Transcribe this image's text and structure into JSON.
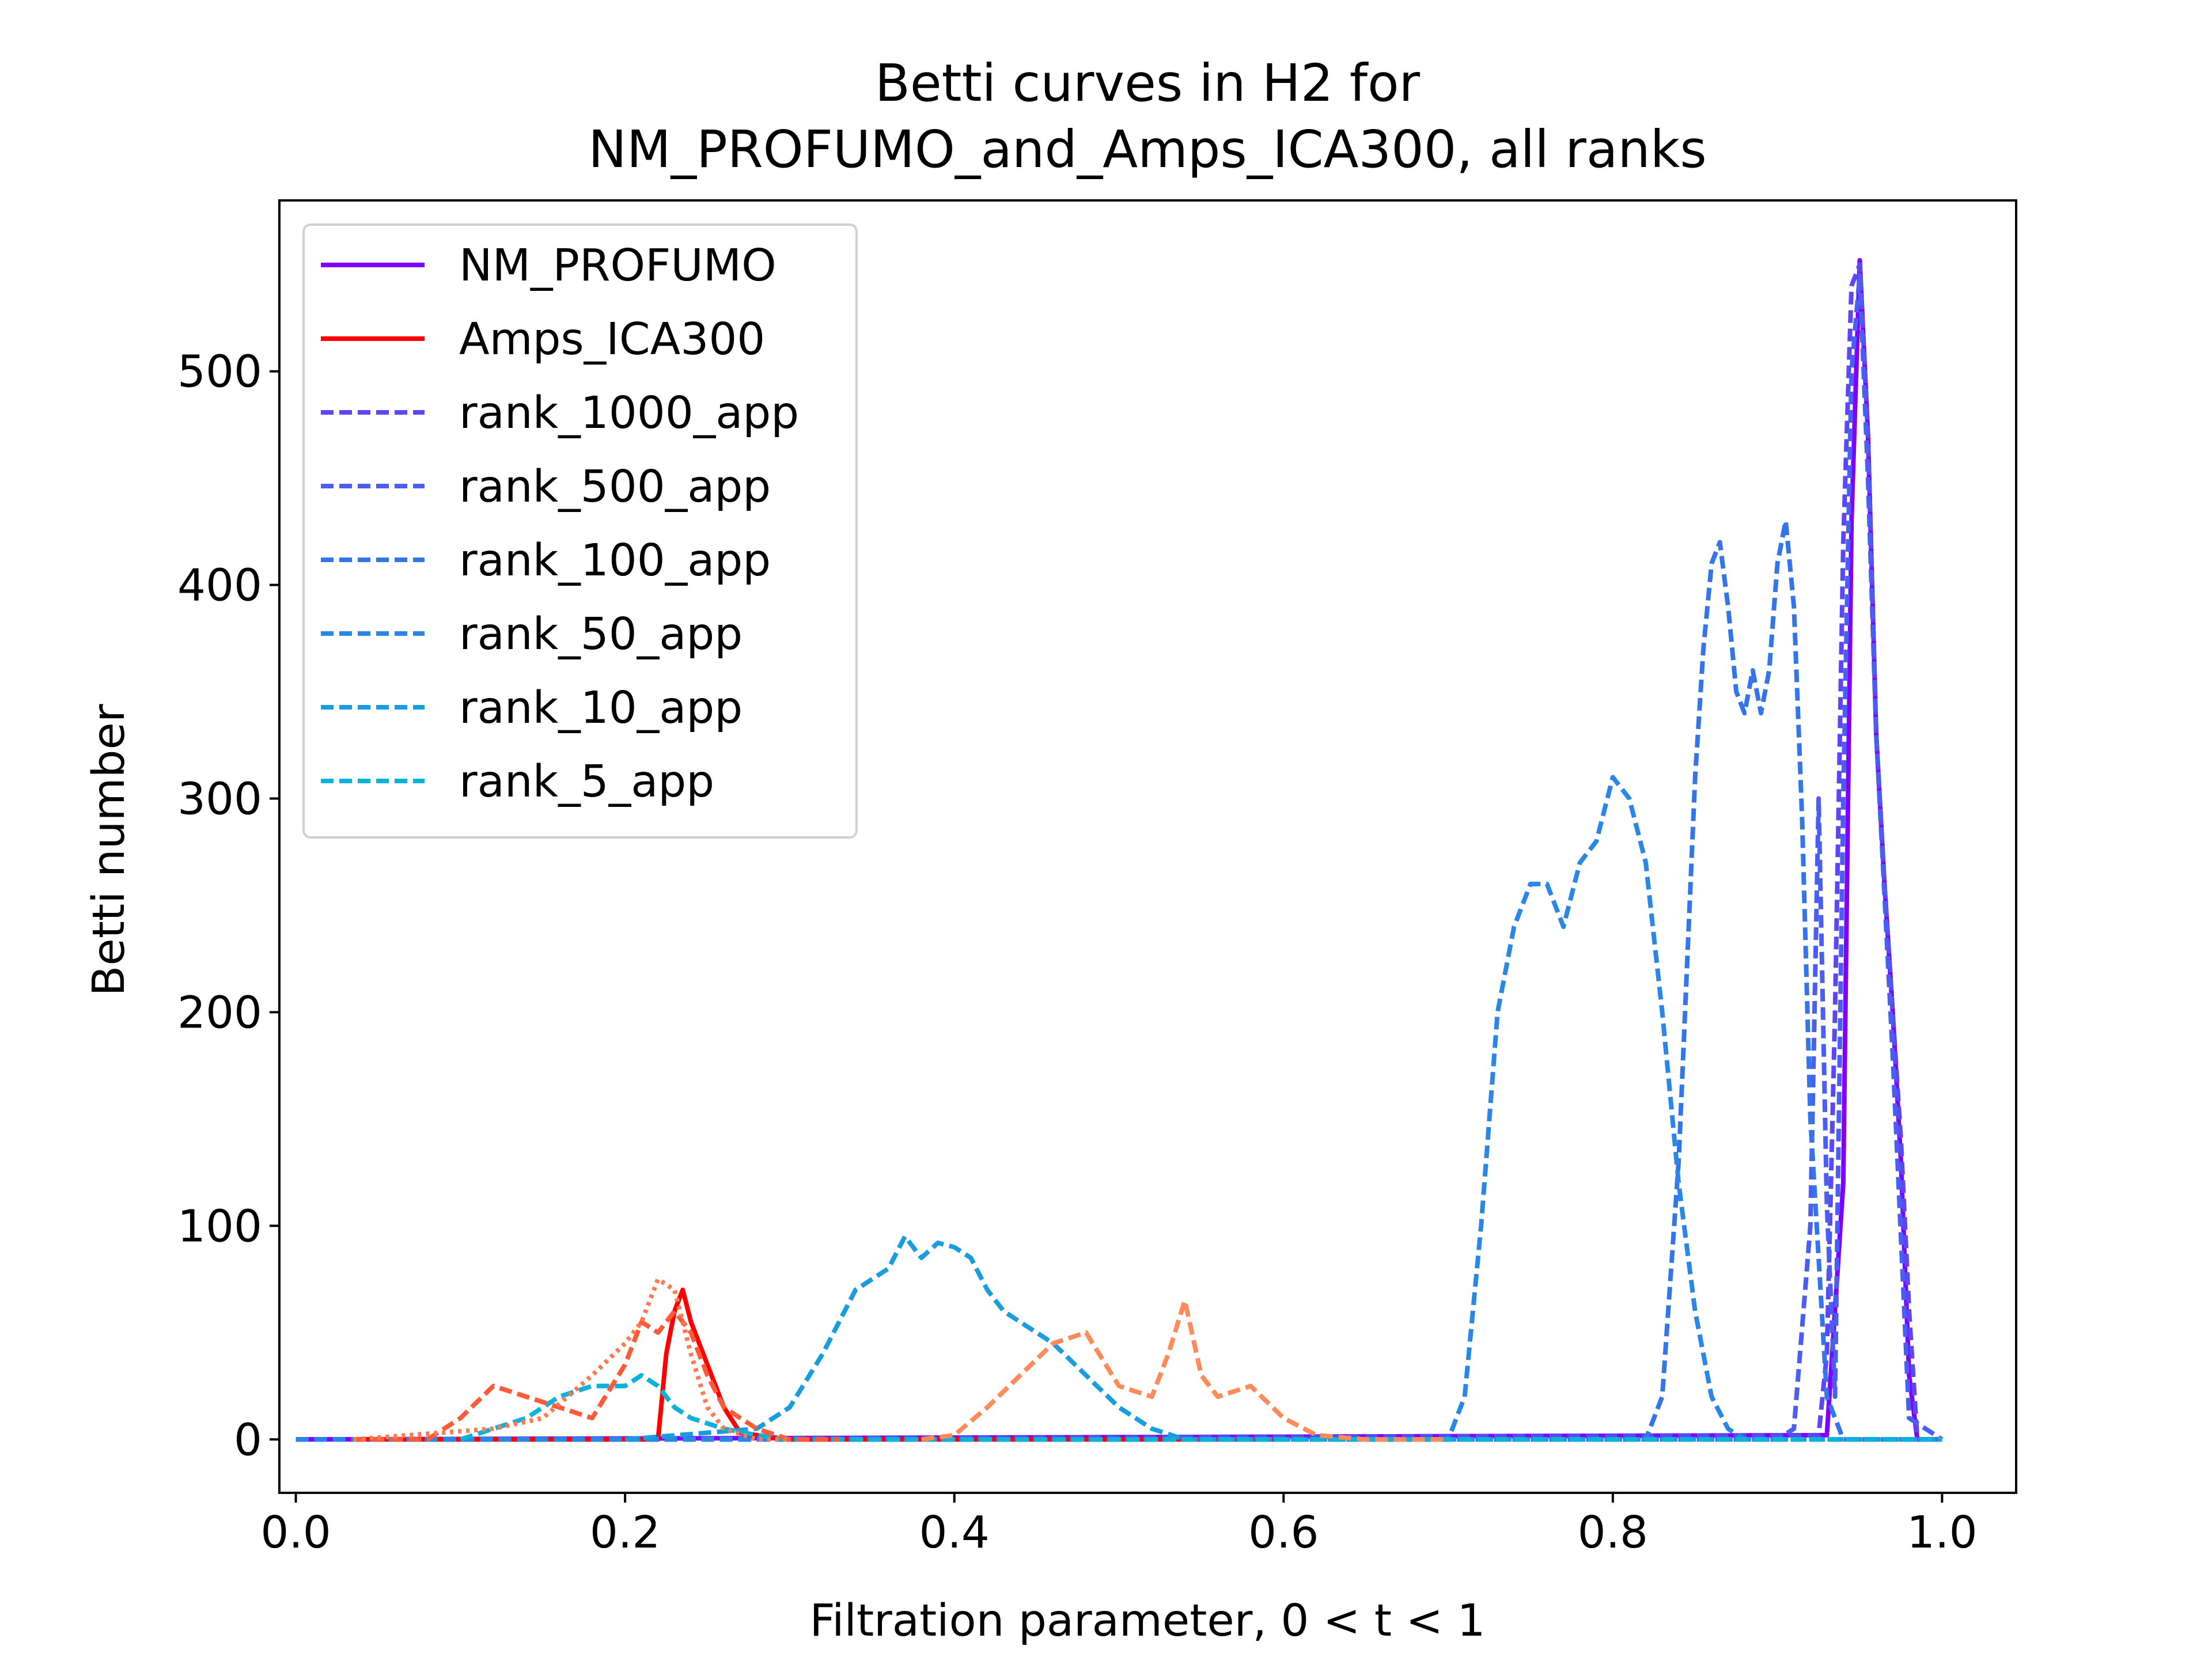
{
  "chart_data": {
    "type": "line",
    "title": [
      "Betti curves in H2 for",
      "NM_PROFUMO_and_Amps_ICA300, all ranks"
    ],
    "xlabel": "Filtration parameter, 0 < t < 1",
    "ylabel": "Betti number",
    "xlim": [
      -0.01,
      1.045
    ],
    "ylim": [
      -25,
      580
    ],
    "xticks": [
      0.0,
      0.2,
      0.4,
      0.6,
      0.8,
      1.0
    ],
    "xtick_labels": [
      "0.0",
      "0.2",
      "0.4",
      "0.6",
      "0.8",
      "1.0"
    ],
    "yticks": [
      0,
      100,
      200,
      300,
      400,
      500
    ],
    "ytick_labels": [
      "0",
      "100",
      "200",
      "300",
      "400",
      "500"
    ],
    "grid": false,
    "legend_position": "upper-left",
    "legend": [
      {
        "label": "NM_PROFUMO",
        "color": "#7f00ff",
        "style": "solid"
      },
      {
        "label": "Amps_ICA300",
        "color": "#ff0000",
        "style": "solid"
      },
      {
        "label": "rank_1000_app",
        "color": "#5a48f7",
        "style": "dashed"
      },
      {
        "label": "rank_500_app",
        "color": "#4a5ff2",
        "style": "dashed"
      },
      {
        "label": "rank_100_app",
        "color": "#3575ec",
        "style": "dashed"
      },
      {
        "label": "rank_50_app",
        "color": "#2a87e6",
        "style": "dashed"
      },
      {
        "label": "rank_10_app",
        "color": "#1a9de0",
        "style": "dashed"
      },
      {
        "label": "rank_5_app",
        "color": "#0eb1d9",
        "style": "dashed"
      }
    ],
    "series": [
      {
        "name": "NM_PROFUMO",
        "color": "#7f00ff",
        "style": "solid",
        "x": [
          0.0,
          0.93,
          0.94,
          0.945,
          0.95,
          0.955,
          0.96,
          0.965,
          0.97,
          0.975,
          0.98,
          0.985,
          1.0
        ],
        "y": [
          0,
          2,
          120,
          430,
          552,
          470,
          330,
          260,
          200,
          130,
          30,
          0,
          0
        ]
      },
      {
        "name": "Amps_ICA300",
        "color": "#ff0000",
        "style": "solid",
        "x": [
          0.035,
          0.22,
          0.225,
          0.23,
          0.235,
          0.24,
          0.25,
          0.26,
          0.27,
          0.3,
          0.6
        ],
        "y": [
          0,
          0,
          40,
          60,
          70,
          55,
          35,
          15,
          3,
          0,
          0
        ]
      },
      {
        "name": "rank_1000_app",
        "color": "#5a48f7",
        "style": "dashed",
        "x": [
          0.0,
          0.925,
          0.93,
          0.935,
          0.94,
          0.945,
          0.95,
          0.955,
          0.96,
          0.965,
          0.97,
          0.975,
          0.98,
          0.985,
          1.0
        ],
        "y": [
          0,
          2,
          40,
          200,
          420,
          540,
          550,
          470,
          330,
          260,
          200,
          140,
          60,
          0,
          0
        ]
      },
      {
        "name": "rank_500_app",
        "color": "#4a5ff2",
        "style": "dashed",
        "x": [
          0.0,
          0.9,
          0.91,
          0.92,
          0.925,
          0.93,
          0.935,
          0.94,
          0.945,
          0.95,
          0.955,
          0.96,
          0.97,
          0.98,
          1.0
        ],
        "y": [
          0,
          0,
          5,
          100,
          300,
          110,
          20,
          300,
          500,
          545,
          450,
          330,
          180,
          10,
          0
        ]
      },
      {
        "name": "rank_100_app",
        "color": "#3575ec",
        "style": "dashed",
        "x": [
          0.0,
          0.82,
          0.83,
          0.84,
          0.85,
          0.855,
          0.86,
          0.865,
          0.87,
          0.875,
          0.88,
          0.885,
          0.89,
          0.895,
          0.9,
          0.905,
          0.91,
          0.915,
          0.92,
          0.93,
          0.94,
          1.0
        ],
        "y": [
          0,
          0,
          20,
          130,
          310,
          370,
          410,
          420,
          390,
          350,
          340,
          360,
          340,
          360,
          410,
          430,
          390,
          290,
          150,
          20,
          0,
          0
        ]
      },
      {
        "name": "rank_50_app",
        "color": "#2a87e6",
        "style": "dashed",
        "x": [
          0.0,
          0.7,
          0.71,
          0.72,
          0.73,
          0.74,
          0.75,
          0.76,
          0.77,
          0.78,
          0.79,
          0.8,
          0.81,
          0.82,
          0.83,
          0.84,
          0.85,
          0.86,
          0.87,
          0.88,
          0.9,
          1.0
        ],
        "y": [
          0,
          0,
          20,
          100,
          200,
          240,
          260,
          260,
          240,
          270,
          280,
          310,
          300,
          270,
          200,
          120,
          60,
          20,
          5,
          0,
          0,
          0
        ]
      },
      {
        "name": "rank_10_app",
        "color": "#1a9de0",
        "style": "dashed",
        "x": [
          0.2,
          0.28,
          0.3,
          0.32,
          0.34,
          0.36,
          0.37,
          0.38,
          0.39,
          0.4,
          0.41,
          0.42,
          0.43,
          0.44,
          0.45,
          0.46,
          0.48,
          0.5,
          0.52,
          0.54,
          0.56,
          1.0
        ],
        "y": [
          0,
          5,
          15,
          40,
          70,
          80,
          95,
          85,
          92,
          90,
          85,
          70,
          60,
          55,
          50,
          45,
          30,
          15,
          5,
          0,
          0,
          0
        ]
      },
      {
        "name": "rank_5_app",
        "color": "#0eb1d9",
        "style": "dashed",
        "x": [
          0.1,
          0.12,
          0.14,
          0.16,
          0.18,
          0.2,
          0.21,
          0.22,
          0.23,
          0.24,
          0.26,
          0.28,
          0.3,
          0.35,
          1.0
        ],
        "y": [
          0,
          5,
          10,
          20,
          25,
          25,
          30,
          25,
          15,
          10,
          5,
          2,
          0,
          0,
          0
        ]
      },
      {
        "name": "",
        "color": "#ff5a3a",
        "style": "dashed",
        "x": [
          0.035,
          0.08,
          0.1,
          0.12,
          0.14,
          0.16,
          0.18,
          0.2,
          0.21,
          0.22,
          0.23,
          0.24,
          0.25,
          0.26,
          0.28,
          0.3,
          0.33
        ],
        "y": [
          0,
          0,
          10,
          25,
          20,
          15,
          10,
          35,
          55,
          50,
          60,
          50,
          30,
          15,
          5,
          0,
          0
        ]
      },
      {
        "name": "",
        "color": "#ff7a50",
        "style": "dotted",
        "x": [
          0.035,
          0.12,
          0.15,
          0.18,
          0.2,
          0.21,
          0.22,
          0.23,
          0.24,
          0.25,
          0.26,
          0.28,
          0.3
        ],
        "y": [
          0,
          5,
          10,
          30,
          45,
          55,
          75,
          70,
          40,
          15,
          5,
          0,
          0
        ]
      },
      {
        "name": "",
        "color": "#ff8a5a",
        "style": "dashed",
        "x": [
          0.38,
          0.4,
          0.42,
          0.44,
          0.46,
          0.48,
          0.5,
          0.52,
          0.53,
          0.54,
          0.55,
          0.56,
          0.58,
          0.6,
          0.62,
          0.65,
          0.7
        ],
        "y": [
          0,
          2,
          15,
          30,
          45,
          50,
          25,
          20,
          40,
          65,
          30,
          20,
          25,
          10,
          2,
          0,
          0
        ]
      }
    ]
  }
}
